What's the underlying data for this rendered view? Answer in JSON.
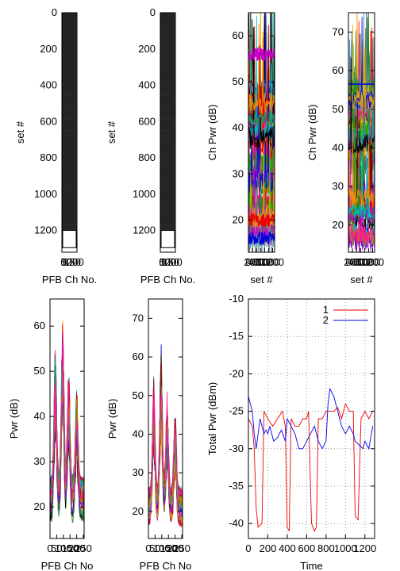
{
  "chart_data": [
    {
      "panel": "top-1",
      "type": "heatmap",
      "xlabel": "PFB Ch No.",
      "ylabel": "set #",
      "y_ticks": [
        "0",
        "200",
        "400",
        "600",
        "800",
        "1000",
        "1200"
      ],
      "y_tick_values": [
        0,
        200,
        400,
        600,
        800,
        1000,
        1200
      ],
      "x_ticks": [
        "0",
        "50",
        "100",
        "150",
        "200"
      ],
      "x_tick_values": [
        0,
        50,
        100,
        150,
        200
      ],
      "ylim": [
        0,
        1320
      ],
      "y_inverted": true
    },
    {
      "panel": "top-2",
      "type": "heatmap",
      "xlabel": "PFB Ch No.",
      "ylabel": "set #",
      "y_ticks": [
        "0",
        "200",
        "400",
        "600",
        "800",
        "1000",
        "1200"
      ],
      "y_tick_values": [
        0,
        200,
        400,
        600,
        800,
        1000,
        1200
      ],
      "x_ticks": [
        "0",
        "50",
        "100",
        "150",
        "200"
      ],
      "x_tick_values": [
        0,
        50,
        100,
        150,
        200
      ],
      "ylim": [
        0,
        1320
      ],
      "y_inverted": true
    },
    {
      "panel": "top-3",
      "type": "line",
      "xlabel": "set #",
      "ylabel": "Ch Pwr (dB)",
      "y_ticks": [
        "20",
        "30",
        "40",
        "50",
        "60"
      ],
      "y_tick_values": [
        20,
        30,
        40,
        50,
        60
      ],
      "x_ticks": [
        "0",
        "200",
        "400",
        "600",
        "800",
        "1000",
        "1200"
      ],
      "x_tick_values": [
        0,
        200,
        400,
        600,
        800,
        1000,
        1200
      ],
      "xlim": [
        0,
        1300
      ],
      "ylim": [
        13,
        65
      ],
      "note_lines": [
        {
          "name": "",
          "color": "#cc00cc",
          "level": 56
        },
        {
          "name": "",
          "color": "#2e8b57",
          "level": 42
        },
        {
          "name": "",
          "color": "#ee0000",
          "level": 20
        },
        {
          "name": "",
          "color": "#0000dd",
          "level": 16
        }
      ]
    },
    {
      "panel": "top-4",
      "type": "line",
      "xlabel": "set #",
      "ylabel": "Ch Pwr (dB)",
      "y_ticks": [
        "20",
        "30",
        "40",
        "50",
        "60",
        "70"
      ],
      "y_tick_values": [
        20,
        30,
        40,
        50,
        60,
        70
      ],
      "x_ticks": [
        "0",
        "200",
        "400",
        "600",
        "800",
        "1000",
        "1200"
      ],
      "x_tick_values": [
        0,
        200,
        400,
        600,
        800,
        1000,
        1200
      ],
      "xlim": [
        0,
        1300
      ],
      "ylim": [
        13,
        75
      ],
      "flat_line": {
        "color": "#0000dd",
        "value": 56.5
      }
    },
    {
      "panel": "bottom-1",
      "type": "line",
      "xlabel": "PFB Ch No",
      "ylabel": "Pwr (dB)",
      "y_ticks": [
        "20",
        "30",
        "40",
        "50",
        "60"
      ],
      "y_tick_values": [
        20,
        30,
        40,
        50,
        60
      ],
      "x_ticks": [
        "0",
        "50",
        "100",
        "150",
        "200",
        "250"
      ],
      "x_tick_values": [
        0,
        50,
        100,
        150,
        200,
        250
      ],
      "xlim": [
        0,
        256
      ],
      "ylim": [
        13,
        66
      ]
    },
    {
      "panel": "bottom-2",
      "type": "line",
      "xlabel": "PFB Ch No",
      "ylabel": "Pwr (dB)",
      "y_ticks": [
        "20",
        "30",
        "40",
        "50",
        "60",
        "70"
      ],
      "y_tick_values": [
        20,
        30,
        40,
        50,
        60,
        70
      ],
      "x_ticks": [
        "0",
        "50",
        "100",
        "150",
        "200",
        "250"
      ],
      "x_tick_values": [
        0,
        50,
        100,
        150,
        200,
        250
      ],
      "xlim": [
        0,
        256
      ],
      "ylim": [
        13,
        75
      ]
    },
    {
      "panel": "bottom-3",
      "type": "line",
      "xlabel": "Time",
      "ylabel": "Total Pwr (dBm)",
      "y_ticks": [
        "-10",
        "-15",
        "-20",
        "-25",
        "-30",
        "-35",
        "-40"
      ],
      "y_tick_values": [
        -10,
        -15,
        -20,
        -25,
        -30,
        -35,
        -40
      ],
      "x_ticks": [
        "0",
        "200",
        "400",
        "600",
        "800",
        "1000",
        "1200"
      ],
      "x_tick_values": [
        0,
        200,
        400,
        600,
        800,
        1000,
        1200
      ],
      "xlim": [
        0,
        1300
      ],
      "ylim": [
        -42,
        -10
      ],
      "grid": true,
      "legend_position": "top-right",
      "series": [
        {
          "name": "1",
          "color": "#ee0000",
          "x": [
            0,
            40,
            60,
            80,
            100,
            140,
            160,
            200,
            250,
            300,
            350,
            380,
            400,
            420,
            440,
            480,
            520,
            560,
            600,
            620,
            650,
            680,
            700,
            720,
            760,
            800,
            840,
            880,
            920,
            960,
            1000,
            1040,
            1080,
            1100,
            1130,
            1160,
            1200,
            1240,
            1280
          ],
          "y": [
            -26,
            -27,
            -30,
            -38,
            -40.5,
            -40,
            -25,
            -26,
            -27,
            -26,
            -25,
            -27,
            -40.5,
            -41,
            -26,
            -27,
            -27,
            -26,
            -26,
            -25,
            -40,
            -41,
            -40.5,
            -26,
            -26,
            -25,
            -25,
            -25,
            -24.5,
            -26,
            -24,
            -25,
            -25,
            -39,
            -39.5,
            -26,
            -25,
            -26,
            -25
          ]
        },
        {
          "name": "2",
          "color": "#0000ee",
          "x": [
            0,
            20,
            40,
            60,
            80,
            100,
            120,
            140,
            160,
            180,
            200,
            220,
            260,
            300,
            340,
            380,
            400,
            440,
            480,
            520,
            560,
            600,
            640,
            680,
            720,
            760,
            800,
            820,
            840,
            880,
            920,
            960,
            1000,
            1040,
            1080,
            1100,
            1140,
            1180,
            1200,
            1240,
            1280
          ],
          "y": [
            -23,
            -24,
            -25,
            -28,
            -30,
            -28,
            -26,
            -27,
            -28,
            -27.5,
            -28,
            -27,
            -29,
            -28.5,
            -27.5,
            -29,
            -26,
            -27,
            -28,
            -30,
            -30,
            -29,
            -28,
            -27,
            -29,
            -30,
            -29,
            -24,
            -22,
            -23,
            -25,
            -27,
            -28,
            -27,
            -28,
            -29,
            -29.5,
            -30,
            -29,
            -30,
            -27
          ]
        }
      ]
    }
  ]
}
